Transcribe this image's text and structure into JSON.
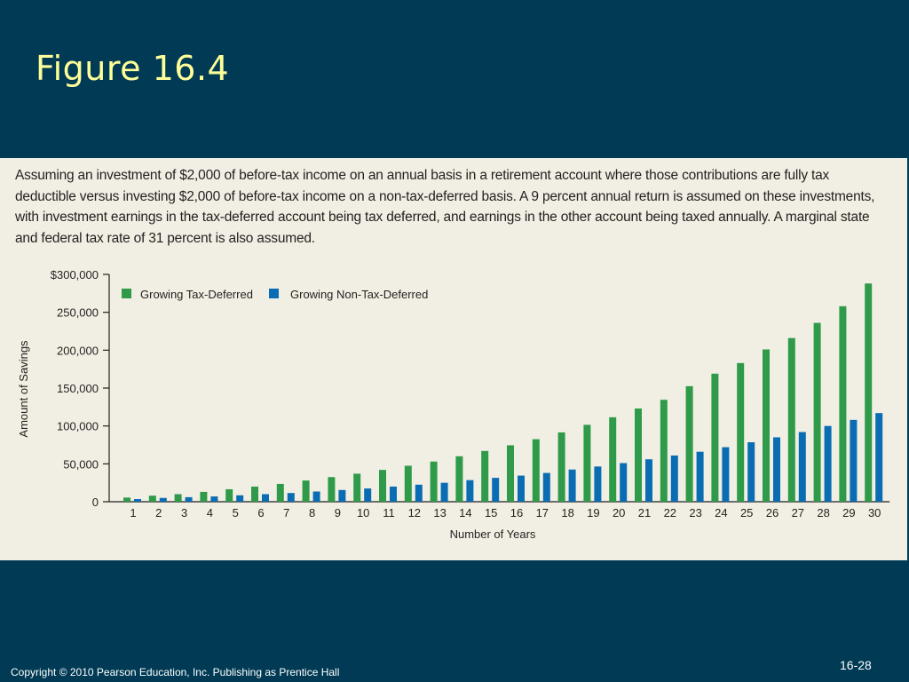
{
  "slide": {
    "title": "Figure 16.4",
    "copyright": "Copyright © 2010 Pearson Education, Inc.  Publishing as Prentice Hall",
    "page_number": "16-28"
  },
  "caption": "Assuming an investment of $2,000 of before-tax income on an annual basis in a retirement account where those contributions are fully tax deductible versus investing $2,000 of before-tax income on a non-tax-deferred basis. A 9 percent annual return is assumed on these investments, with investment earnings in the tax-deferred account being tax deferred, and earnings in the other account being taxed annually. A marginal state and federal tax rate of 31 percent is also assumed.",
  "chart_data": {
    "type": "bar",
    "xlabel": "Number of Years",
    "ylabel": "Amount of Savings",
    "ylim": [
      0,
      300000
    ],
    "yticks": [
      0,
      50000,
      100000,
      150000,
      200000,
      250000,
      300000
    ],
    "ytick_labels": [
      "0",
      "50,000",
      "100,000",
      "150,000",
      "200,000",
      "250,000",
      "$300,000"
    ],
    "legend_position": "top-left",
    "categories": [
      "1",
      "2",
      "3",
      "4",
      "5",
      "6",
      "7",
      "8",
      "9",
      "10",
      "11",
      "12",
      "13",
      "14",
      "15",
      "16",
      "17",
      "18",
      "19",
      "20",
      "21",
      "22",
      "23",
      "24",
      "25",
      "26",
      "27",
      "28",
      "29",
      "30"
    ],
    "series": [
      {
        "name": "Growing Tax-Deferred",
        "color": "#2e9a4a",
        "values": [
          5500,
          8000,
          10000,
          13000,
          16500,
          20000,
          23500,
          28000,
          32500,
          37000,
          42000,
          47500,
          53000,
          60000,
          67000,
          74500,
          82500,
          91500,
          101500,
          111500,
          123000,
          134500,
          152500,
          169000,
          183000,
          201000,
          216000,
          236000,
          258000,
          288000
        ]
      },
      {
        "name": "Growing Non-Tax-Deferred",
        "color": "#0a6db3",
        "values": [
          3500,
          5000,
          6000,
          7000,
          8500,
          10000,
          11500,
          13500,
          15500,
          17500,
          20000,
          22500,
          25000,
          28500,
          31500,
          34500,
          38000,
          42500,
          46500,
          51000,
          56000,
          61000,
          66000,
          72000,
          78500,
          85000,
          92000,
          100000,
          108000,
          117000
        ]
      }
    ]
  }
}
